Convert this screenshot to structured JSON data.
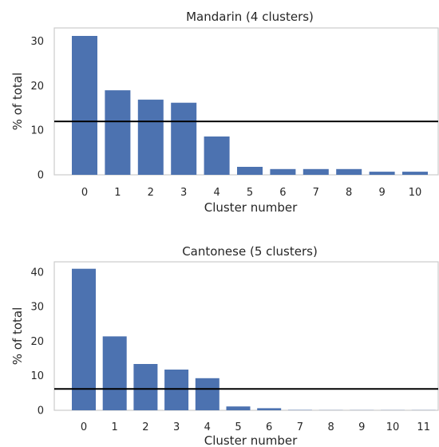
{
  "chart_data": [
    {
      "type": "bar",
      "title": "Mandarin (4 clusters)",
      "xlabel": "Cluster number",
      "ylabel": "% of total",
      "categories": [
        "0",
        "1",
        "2",
        "3",
        "4",
        "5",
        "6",
        "7",
        "8",
        "9",
        "10"
      ],
      "values": [
        31.2,
        19.0,
        16.9,
        16.2,
        8.6,
        1.8,
        1.3,
        1.3,
        1.3,
        0.7,
        0.7
      ],
      "reference_line": 12.0,
      "ylim": [
        0,
        33
      ],
      "yticks": [
        0,
        10,
        20,
        30
      ],
      "grid": false,
      "colors": {
        "bar": "#4c72b0",
        "line": "#000000"
      }
    },
    {
      "type": "bar",
      "title": "Cantonese (5 clusters)",
      "xlabel": "Cluster number",
      "ylabel": "% of total",
      "categories": [
        "0",
        "1",
        "2",
        "3",
        "4",
        "5",
        "6",
        "7",
        "8",
        "9",
        "10",
        "11"
      ],
      "values": [
        41.0,
        21.4,
        13.4,
        11.8,
        9.3,
        1.1,
        0.6,
        0.1,
        0.05,
        0.05,
        0.05,
        0.05
      ],
      "reference_line": 6.2,
      "ylim": [
        0,
        43
      ],
      "yticks": [
        0,
        10,
        20,
        30,
        40
      ],
      "grid": false,
      "colors": {
        "bar": "#4c72b0",
        "line": "#000000"
      }
    }
  ]
}
